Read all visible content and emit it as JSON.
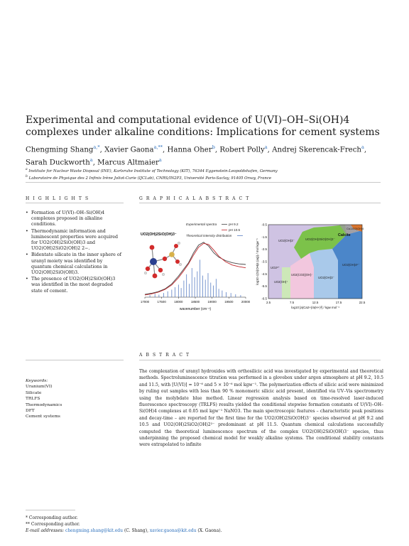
{
  "title": "Experimental and computational evidence of U(VI)–OH–Si(OH)4 complexes under alkaline conditions: Implications for cement systems",
  "authors": [
    {
      "name": "Chengming Shang",
      "sup": "a,*"
    },
    {
      "name": "Xavier Gaona",
      "sup": "a,**"
    },
    {
      "name": "Hanna Oher",
      "sup": "b"
    },
    {
      "name": "Robert Polly",
      "sup": "a"
    },
    {
      "name": "Andrej Skerencak-Frech",
      "sup": "a"
    },
    {
      "name": "Sarah Duckworth",
      "sup": "a"
    },
    {
      "name": "Marcus Altmaier",
      "sup": "a"
    }
  ],
  "affiliations": [
    {
      "sup": "a",
      "text": "Institute for Nuclear Waste Disposal (INE), Karlsruhe Institute of Technology (KIT), 76344 Eggenstein-Leopoldshafen, Germany"
    },
    {
      "sup": "b",
      "text": "Laboratoire de Physique des 2 Infinis Irène Joliot-Curie (IJCLab), CNRS/IN2P3, Université Paris-Saclay, 91405 Orsay, France"
    }
  ],
  "sections": {
    "highlights": "H I G H L I G H T S",
    "graphical_abstract": "G R A P H I C A L   A B S T R A C T",
    "abstract": "A B S T R A C T"
  },
  "highlights": [
    "Formation of U(VI)–OH–Si(OH)4 complexes proposed in alkaline conditions.",
    "Thermodynamic information and luminescent properties were acquired for UO2(OH)2SiO(OH)3 and UO2(OH)2SiO2(OH)2 2−.",
    "Bidentate silicate in the inner sphere of uranyl moiety was identified by quantum chemical calculations in UO2(OH)2SiO(OH)3.",
    "The presence of UO2(OH)2SiO(OH)3 was identified in the most degraded state of cement."
  ],
  "keywords": {
    "label": "Keywords:",
    "items": [
      "Uranium(VI)",
      "Silicate",
      "TRLFS",
      "Thermodynamics",
      "DFT",
      "Cement systems"
    ]
  },
  "abstract": "The complexation of uranyl hydroxides with orthosilicic acid was investigated by experimental and theoretical methods. Spectroluminescence titration was performed in a glovebox under argon atmosphere at pH 9.2, 10.5 and 11.5, with [U(VI)] = 10⁻⁶ and 5 × 10⁻⁶ mol kgw⁻¹. The polymerization effects of silicic acid were minimized by ruling out samples with less than 90 % monomeric silicic acid present, identified via UV–Vis spectrometry using the molybdate blue method. Linear regression analysis based on time-resolved laser-induced fluorescence spectroscopy (TRLFS) results yielded the conditional stepwise formation constants of U(VI)–OH–Si(OH)4 complexes at 0.05 mol kgw⁻¹ NaNO3. The main spectroscopic features – characteristic peak positions and decay-time – are reported for the first time for the UO2(OH)2SiO(OH)3⁻ species observed at pH 9.2 and 10.5 and UO2(OH)2SiO2(OH)2²⁻ predominant at pH 11.5. Quantum chemical calculations successfully computed the theoretical luminescence spectrum of the complex UO2(OH)2SiO(OH)3⁻ species, thus underpinning the proposed chemical model for weakly alkaline systems. The conditional stability constants were extrapolated to infinite",
  "footnotes": {
    "corr1": "*  Corresponding author.",
    "corr2": "**  Corresponding author.",
    "email_label": "E-mail addresses:",
    "email1": "chengming.shang@kit.edu",
    "email1_who": "(C. Shang),",
    "email2": "xavier.gaona@kit.edu",
    "email2_who": "(X. Gaona)."
  },
  "figure_left": {
    "molecule_label": "UO2(OH)2SiO(OH)3⁻",
    "legend_exp": "Experimental spectra",
    "legend_theo": "Theoretical intensity distribution",
    "legend_ph92": "pH 9.2",
    "legend_ph105": "pH 10.5",
    "colors": {
      "ph92": "#444444",
      "ph105": "#c0282d",
      "theo": "#5b7fc4"
    }
  },
  "figure_right": {
    "ylabel": "log10 c(Si(OH)4 (aq)) / mol kgw⁻¹",
    "xlabel": "log10 [a(Ca2+)/a(H+)²] / kgw mol⁻¹",
    "region_labels": [
      "UO2(OH)3⁻",
      "UO2(OH)2SiO(OH)3⁻",
      "Calcite",
      "Ca-UO2(OH)4",
      "UO2²⁺",
      "UO2(OH)⁺",
      "UO2(CO3)(OH)⁻",
      "UO2(OH)3⁻",
      "UO2(OH)4²⁻"
    ],
    "colors": {
      "lavender": "#cfc3e3",
      "green": "#7cc24a",
      "lightgreen": "#cde8b8",
      "pink": "#f2c7de",
      "lightblue": "#a9c9ea",
      "blue": "#4b86c9",
      "orange": "#d9742d",
      "grey": "#9a9a9a"
    }
  },
  "chart_data": [
    {
      "type": "line",
      "xlabel": "wavenumber (cm⁻¹)",
      "ylabel": "",
      "xlim": [
        17000,
        20000
      ],
      "x_ticks": [
        17000,
        17500,
        18000,
        18500,
        19000,
        19500,
        20000
      ],
      "series": [
        {
          "name": "pH 9.2",
          "x": [
            17000,
            17200,
            17400,
            17600,
            17800,
            18000,
            18150,
            18300,
            18450,
            18600,
            18750,
            18900,
            19050,
            19200,
            19400,
            19600,
            19800,
            20000
          ],
          "y": [
            0.05,
            0.07,
            0.1,
            0.15,
            0.24,
            0.38,
            0.5,
            0.62,
            0.8,
            0.94,
            0.99,
            0.92,
            0.8,
            0.72,
            0.66,
            0.62,
            0.6,
            0.59
          ]
        },
        {
          "name": "pH 10.5",
          "x": [
            17000,
            17200,
            17400,
            17600,
            17800,
            18000,
            18150,
            18300,
            18450,
            18600,
            18750,
            18900,
            19050,
            19200,
            19400,
            19600,
            19800,
            20000
          ],
          "y": [
            0.04,
            0.06,
            0.09,
            0.14,
            0.22,
            0.35,
            0.47,
            0.6,
            0.76,
            0.9,
            0.97,
            0.95,
            0.85,
            0.74,
            0.64,
            0.58,
            0.55,
            0.53
          ]
        }
      ],
      "sticks": {
        "name": "Theoretical intensity distribution",
        "x": [
          17150,
          17300,
          17420,
          17560,
          17680,
          17800,
          17900,
          18000,
          18080,
          18160,
          18240,
          18320,
          18400,
          18480,
          18560,
          18640,
          18720,
          18800,
          18880,
          18960,
          19040,
          19120,
          19200,
          19300,
          19420,
          19560,
          19700,
          19850
        ],
        "y": [
          0.05,
          0.08,
          0.06,
          0.1,
          0.14,
          0.18,
          0.24,
          0.3,
          0.22,
          0.4,
          0.55,
          0.32,
          0.7,
          0.48,
          0.62,
          0.9,
          0.52,
          0.42,
          0.58,
          0.35,
          0.28,
          0.44,
          0.2,
          0.16,
          0.12,
          0.1,
          0.07,
          0.05
        ]
      }
    },
    {
      "type": "heatmap",
      "xlabel": "log10 [a(Ca2+)/a(H+)²] / kgw mol⁻¹",
      "ylabel": "log10 c(Si(OH)4 (aq)) / mol kgw⁻¹",
      "xlim": [
        2.5,
        22.5
      ],
      "ylim": [
        -6.5,
        -0.5
      ],
      "x_ticks": [
        2.5,
        7.5,
        12.5,
        17.5,
        22.5
      ],
      "y_ticks": [
        -0.5,
        -1.5,
        -2.5,
        -3.5,
        -4.5,
        -5.5,
        -6.5
      ],
      "regions": [
        "UO2(OH)3⁻",
        "UO2(OH)2SiO(OH)3⁻",
        "Calcite",
        "Ca-UO2(OH)4",
        "UO2²⁺",
        "UO2(OH)⁺",
        "UO2(CO3)(OH)⁻",
        "UO2(OH)3⁻",
        "UO2(OH)4²⁻"
      ]
    }
  ]
}
